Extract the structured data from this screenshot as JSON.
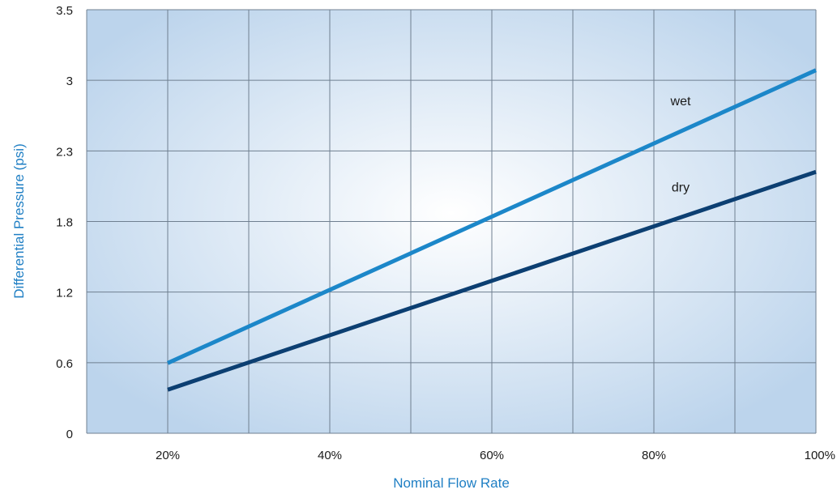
{
  "chart_data": {
    "type": "line",
    "title": "",
    "xlabel": "Nominal Flow Rate",
    "ylabel": "Differential Pressure (psi)",
    "x_ticks": [
      "20%",
      "40%",
      "60%",
      "80%",
      "100%"
    ],
    "x_tick_values": [
      20,
      40,
      60,
      80,
      100
    ],
    "xlim": [
      10,
      100
    ],
    "y_ticks": [
      "0",
      "0.6",
      "1.2",
      "1.8",
      "2.3",
      "3",
      "3.5"
    ],
    "ylim": [
      0,
      3.5
    ],
    "grid": true,
    "legend": "none",
    "series": [
      {
        "name": "wet",
        "x": [
          20,
          100
        ],
        "y": [
          0.58,
          3.0
        ]
      },
      {
        "name": "dry",
        "x": [
          20,
          100
        ],
        "y": [
          0.36,
          2.16
        ]
      }
    ],
    "colors": {
      "wet": "#1c87c9",
      "dry": "#0c3f72",
      "axis_title": "#1f7fc4",
      "grid": "#6f7f90",
      "background_center": "#ffffff",
      "background_edge": "#bcd4ec"
    }
  }
}
